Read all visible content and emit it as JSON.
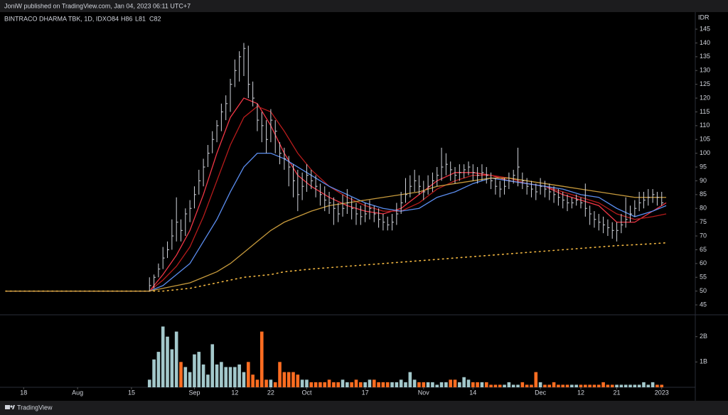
{
  "header": {
    "title": "JoniW published on TradingView.com, Jan 04, 2023 06:11 UTC+7"
  },
  "footer": {
    "brand": "TradingView"
  },
  "chart_data": {
    "type": "ohlc",
    "title": "BINTRACO DHARMA TBK, 1D, IDX",
    "legend_values": [
      "O84",
      "H86",
      "L81",
      "C82"
    ],
    "currency": "IDR",
    "x": [
      32,
      33,
      34,
      35,
      36,
      37,
      38,
      39,
      40,
      41,
      42,
      43,
      44,
      45,
      46,
      47,
      48,
      49,
      50,
      51,
      52,
      53,
      54,
      55,
      56,
      57,
      58,
      59,
      60,
      61,
      62,
      63,
      64,
      65,
      66,
      67,
      68,
      69,
      70,
      71,
      72,
      73,
      74,
      75,
      76,
      77,
      78,
      79,
      80,
      81,
      82,
      83,
      84,
      85,
      86,
      87,
      88,
      89,
      90,
      91,
      92,
      93,
      94,
      95,
      96,
      97,
      98,
      99,
      100,
      101,
      102,
      103,
      104,
      105,
      106,
      107,
      108,
      109,
      110,
      111,
      112,
      113,
      114,
      115,
      116,
      117,
      118,
      119,
      120,
      121,
      122,
      123,
      124,
      125,
      126,
      127,
      128,
      129,
      130,
      131,
      132,
      133,
      134,
      135,
      136,
      137,
      138,
      139,
      140,
      141,
      142,
      143,
      144,
      145,
      146
    ],
    "high": [
      55,
      56,
      60,
      66,
      68,
      76,
      84,
      76,
      80,
      83,
      88,
      94,
      98,
      103,
      108,
      112,
      118,
      121,
      127,
      134,
      137,
      140,
      139,
      126,
      118,
      115,
      112,
      116,
      112,
      104,
      102,
      99,
      96,
      94,
      93,
      96,
      94,
      92,
      89,
      88,
      86,
      84,
      82,
      85,
      87,
      84,
      82,
      81,
      82,
      83,
      81,
      80,
      78,
      77,
      78,
      82,
      86,
      91,
      92,
      94,
      92,
      90,
      92,
      93,
      95,
      102,
      100,
      97,
      95,
      96,
      96,
      97,
      96,
      95,
      96,
      95,
      93,
      91,
      90,
      91,
      93,
      94,
      102,
      93,
      91,
      90,
      89,
      91,
      90,
      89,
      88,
      87,
      86,
      85,
      84,
      85,
      84,
      89,
      81,
      79,
      78,
      77,
      76,
      75,
      75,
      78,
      84,
      81,
      83,
      86,
      86,
      87,
      87,
      86,
      86
    ],
    "low": [
      50,
      51,
      55,
      58,
      62,
      65,
      68,
      68,
      70,
      75,
      80,
      85,
      88,
      95,
      100,
      104,
      108,
      112,
      115,
      124,
      126,
      128,
      120,
      117,
      108,
      104,
      100,
      104,
      100,
      96,
      94,
      88,
      84,
      79,
      83,
      86,
      87,
      84,
      81,
      79,
      78,
      74,
      75,
      77,
      78,
      76,
      74,
      74,
      75,
      76,
      75,
      73,
      72,
      72,
      72,
      74,
      78,
      82,
      84,
      86,
      85,
      83,
      85,
      86,
      88,
      90,
      92,
      90,
      89,
      90,
      91,
      92,
      90,
      89,
      90,
      89,
      87,
      85,
      84,
      85,
      87,
      89,
      88,
      87,
      85,
      84,
      83,
      85,
      84,
      83,
      82,
      81,
      80,
      79,
      80,
      81,
      80,
      77,
      74,
      73,
      72,
      71,
      70,
      69,
      68,
      71,
      73,
      75,
      77,
      79,
      80,
      81,
      82,
      81,
      81
    ],
    "close": [
      52,
      55,
      58,
      62,
      65,
      70,
      75,
      72,
      78,
      80,
      85,
      90,
      95,
      100,
      105,
      110,
      115,
      118,
      125,
      130,
      135,
      138,
      125,
      120,
      112,
      110,
      105,
      112,
      108,
      100,
      98,
      95,
      90,
      85,
      88,
      92,
      90,
      88,
      85,
      83,
      82,
      80,
      78,
      80,
      82,
      80,
      78,
      77,
      78,
      80,
      78,
      76,
      75,
      74,
      75,
      78,
      82,
      85,
      88,
      90,
      88,
      86,
      88,
      90,
      92,
      95,
      96,
      94,
      92,
      93,
      94,
      95,
      93,
      92,
      93,
      92,
      90,
      88,
      87,
      88,
      90,
      92,
      95,
      90,
      88,
      87,
      86,
      88,
      87,
      86,
      85,
      84,
      83,
      82,
      82,
      83,
      82,
      80,
      78,
      76,
      75,
      74,
      73,
      72,
      72,
      74,
      76,
      78,
      80,
      82,
      83,
      84,
      85,
      84,
      82
    ],
    "bar_color": "#d1d4dc",
    "xlim": [
      0,
      153
    ],
    "xticks": [
      {
        "value": 4,
        "label": "18"
      },
      {
        "value": 16,
        "label": "Aug"
      },
      {
        "value": 28,
        "label": "15"
      },
      {
        "value": 42,
        "label": "Sep"
      },
      {
        "value": 51,
        "label": "12"
      },
      {
        "value": 59,
        "label": "22"
      },
      {
        "value": 67,
        "label": "Oct"
      },
      {
        "value": 80,
        "label": "17"
      },
      {
        "value": 93,
        "label": "Nov"
      },
      {
        "value": 104,
        "label": "14"
      },
      {
        "value": 119,
        "label": "Dec"
      },
      {
        "value": 128,
        "label": "12"
      },
      {
        "value": 136,
        "label": "21"
      },
      {
        "value": 146,
        "label": "2023"
      }
    ],
    "ylim": [
      41.4,
      151.2
    ],
    "yticks": [
      45,
      50,
      55,
      60,
      65,
      70,
      75,
      80,
      85,
      90,
      95,
      100,
      105,
      110,
      115,
      120,
      125,
      130,
      135,
      140,
      145
    ],
    "grid": false,
    "indicators": {
      "x": [
        0,
        32,
        35,
        38,
        41,
        44,
        47,
        50,
        53,
        56,
        59,
        62,
        65,
        68,
        72,
        76,
        80,
        84,
        88,
        92,
        96,
        100,
        104,
        108,
        112,
        116,
        120,
        124,
        128,
        132,
        136,
        140,
        144,
        147
      ],
      "series": [
        {
          "color": "#f23645",
          "dash": "solid",
          "values": [
            50,
            50,
            56,
            63,
            72,
            85,
            100,
            113,
            120,
            118,
            110,
            100,
            92,
            88,
            84,
            81,
            79,
            78,
            80,
            85,
            90,
            93,
            93,
            92,
            90,
            89,
            88,
            85,
            83,
            81,
            75,
            75,
            79,
            82
          ]
        },
        {
          "color": "#b71c1c",
          "dash": "solid",
          "values": [
            50,
            50,
            54,
            59,
            66,
            77,
            90,
            103,
            113,
            117,
            115,
            108,
            100,
            94,
            88,
            84,
            81,
            79,
            79,
            82,
            87,
            90,
            92,
            92,
            91,
            89,
            88,
            86,
            84,
            82,
            78,
            76,
            77,
            78
          ]
        },
        {
          "color": "#5b8def",
          "dash": "solid",
          "values": [
            50,
            50,
            52,
            56,
            60,
            68,
            76,
            86,
            95,
            100,
            100,
            98,
            95,
            92,
            88,
            85,
            82,
            80,
            79,
            80,
            84,
            86,
            89,
            91,
            90,
            89,
            88,
            87,
            85,
            84,
            80,
            77,
            79,
            81
          ]
        },
        {
          "color": "#c79a3c",
          "dash": "solid",
          "values": [
            50,
            50,
            51,
            52,
            53,
            55,
            57,
            60,
            64,
            68,
            72,
            75,
            77,
            79,
            81,
            82,
            83,
            84,
            85,
            86,
            88,
            89,
            90,
            91,
            91,
            90,
            89,
            88,
            87,
            86,
            85,
            84,
            84,
            84
          ]
        },
        {
          "color": "#f5b942",
          "dash": "dotted",
          "values": [
            50,
            50,
            50,
            50.5,
            51,
            52,
            53,
            54,
            55,
            55.5,
            56,
            57,
            57.5,
            58,
            58.5,
            59,
            59.5,
            60,
            60.5,
            61,
            61.5,
            62,
            62.5,
            63,
            63.5,
            64,
            64.5,
            65,
            65.5,
            66,
            66.5,
            66.8,
            67.2,
            67.5
          ]
        }
      ]
    },
    "volume": {
      "values": [
        0.3,
        1.1,
        1.4,
        2.4,
        2.0,
        1.5,
        2.2,
        1.0,
        0.8,
        0.6,
        1.3,
        1.4,
        0.9,
        0.5,
        1.7,
        0.9,
        1.0,
        0.8,
        0.8,
        0.8,
        0.9,
        0.6,
        1.0,
        0.5,
        0.3,
        2.2,
        0.3,
        0.3,
        0.2,
        1.0,
        0.6,
        0.6,
        0.6,
        0.5,
        0.3,
        0.3,
        0.2,
        0.2,
        0.2,
        0.2,
        0.3,
        0.2,
        0.2,
        0.3,
        0.2,
        0.2,
        0.3,
        0.2,
        0.2,
        0.3,
        0.3,
        0.2,
        0.2,
        0.2,
        0.2,
        0.2,
        0.3,
        0.2,
        0.6,
        0.3,
        0.2,
        0.2,
        0.2,
        0.2,
        0.1,
        0.2,
        0.2,
        0.3,
        0.3,
        0.2,
        0.4,
        0.3,
        0.2,
        0.2,
        0.2,
        0.2,
        0.1,
        0.1,
        0.1,
        0.1,
        0.2,
        0.1,
        0.1,
        0.2,
        0.1,
        0.1,
        0.6,
        0.2,
        0.1,
        0.1,
        0.2,
        0.1,
        0.1,
        0.1,
        0.1,
        0.1,
        0.1,
        0.1,
        0.1,
        0.1,
        0.1,
        0.2,
        0.1,
        0.1,
        0.1,
        0.1,
        0.1,
        0.1,
        0.1,
        0.1,
        0.2,
        0.1,
        0.2,
        0.1,
        0.1
      ],
      "up_color": "#a3c8cb",
      "down_color": "#ff6d21",
      "ylim": [
        0,
        2.75
      ],
      "yticks": [
        {
          "value": 2,
          "label": "2B"
        },
        {
          "value": 1,
          "label": "1B"
        }
      ]
    }
  }
}
